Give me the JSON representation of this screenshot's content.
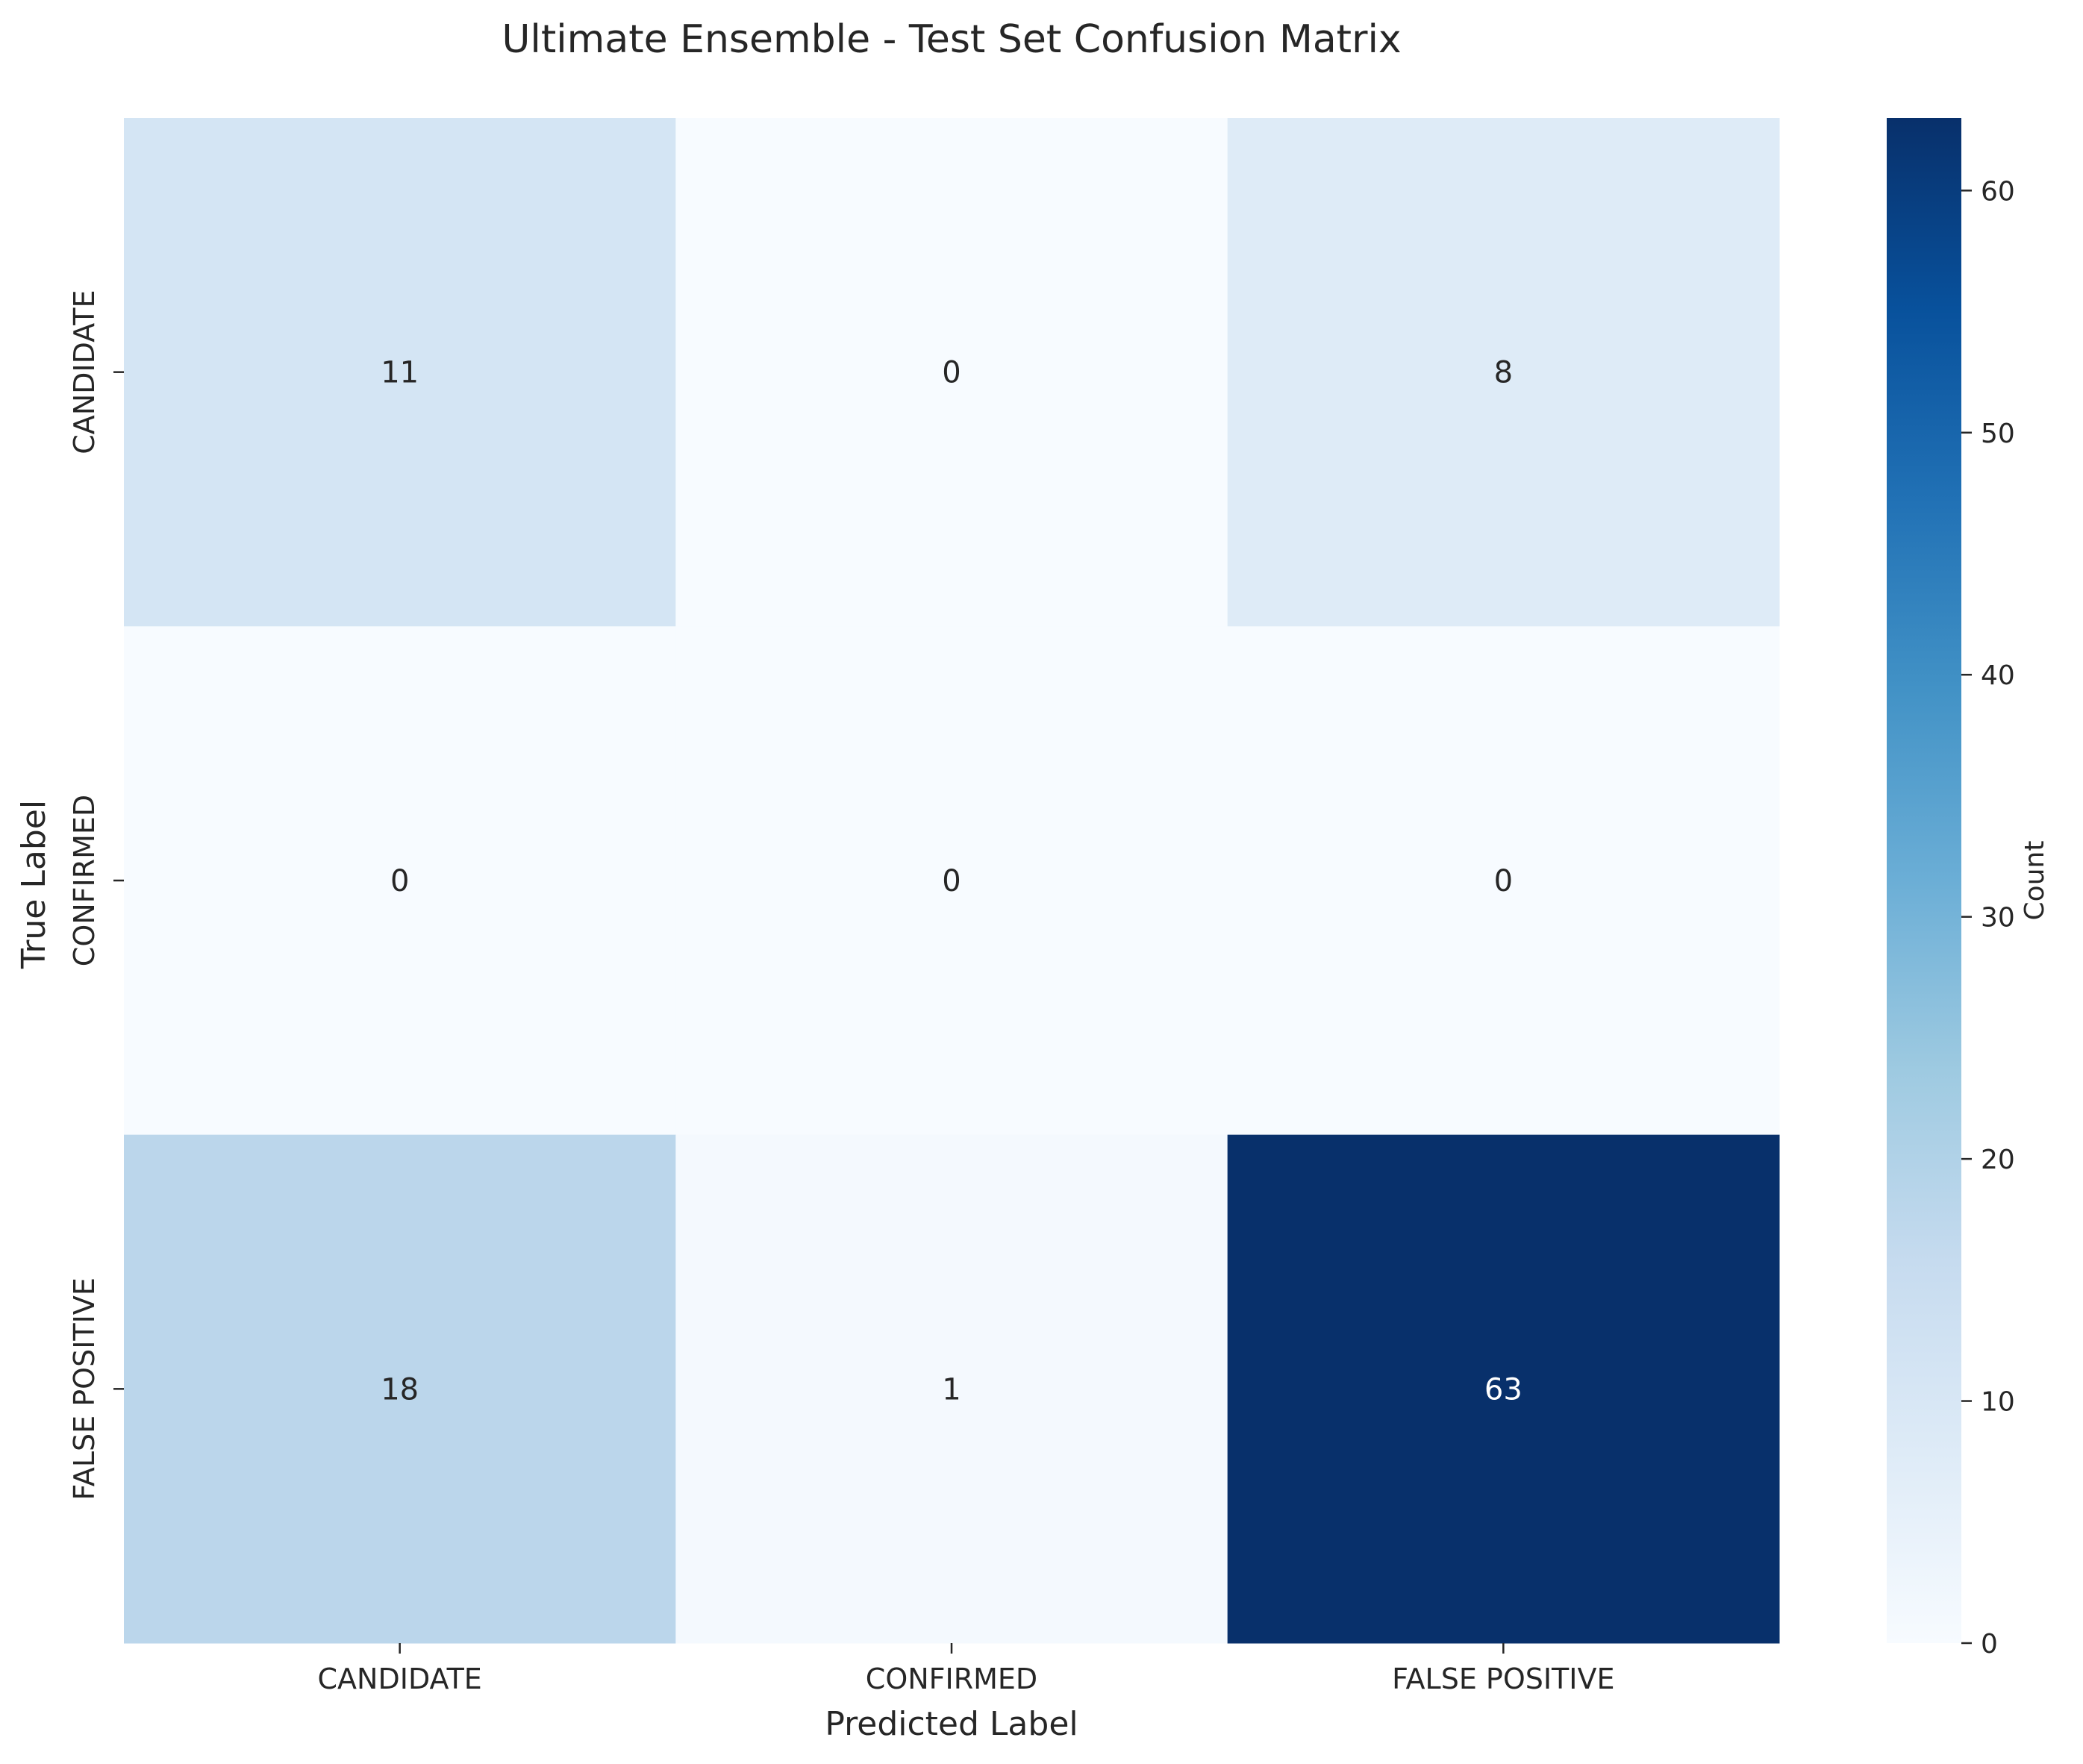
{
  "chart_data": {
    "type": "heatmap",
    "title": "Ultimate Ensemble - Test Set Confusion Matrix",
    "xlabel": "Predicted Label",
    "ylabel": "True Label",
    "x_categories": [
      "CANDIDATE",
      "CONFIRMED",
      "FALSE POSITIVE"
    ],
    "y_categories": [
      "CANDIDATE",
      "CONFIRMED",
      "FALSE POSITIVE"
    ],
    "values": [
      [
        11,
        0,
        8
      ],
      [
        0,
        0,
        0
      ],
      [
        18,
        1,
        63
      ]
    ],
    "colorbar": {
      "label": "Count",
      "range": [
        0,
        63
      ],
      "ticks": [
        0,
        10,
        20,
        30,
        40,
        50,
        60
      ],
      "colormap": "Blues"
    },
    "annotation_colors": {
      "dark": "#262626",
      "light": "#ffffff"
    }
  }
}
